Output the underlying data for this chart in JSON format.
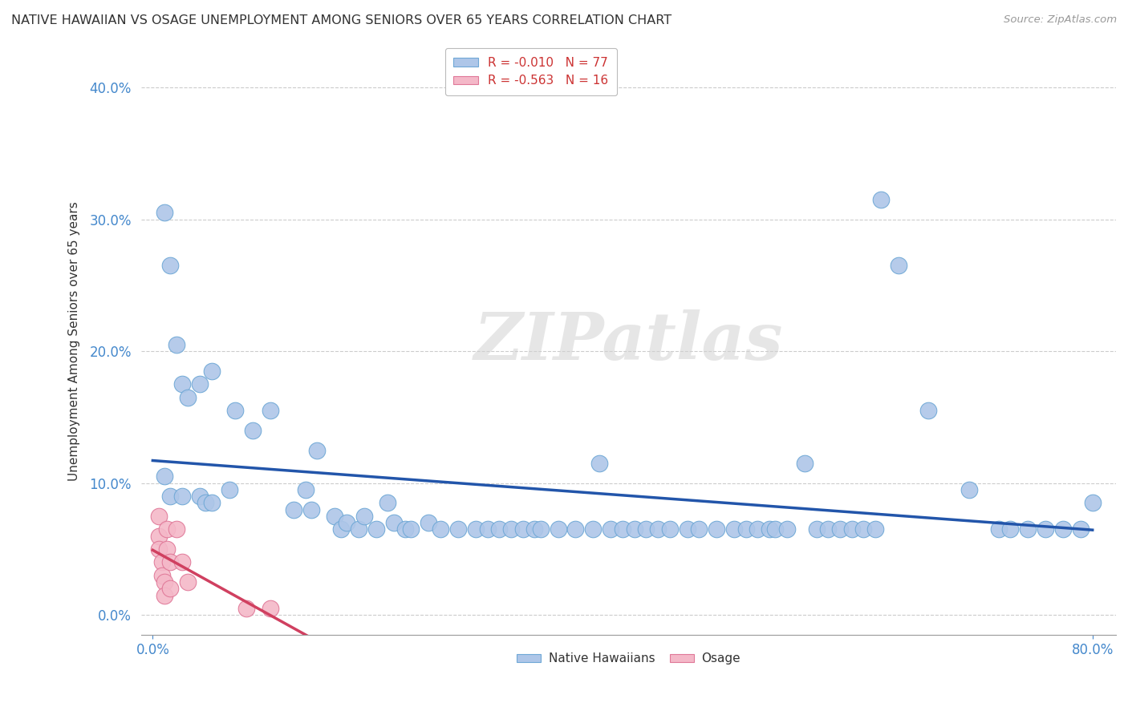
{
  "title": "NATIVE HAWAIIAN VS OSAGE UNEMPLOYMENT AMONG SENIORS OVER 65 YEARS CORRELATION CHART",
  "source": "Source: ZipAtlas.com",
  "ylabel": "Unemployment Among Seniors over 65 years",
  "watermark": "ZIPatlas",
  "nh_color": "#aec6e8",
  "nh_edge_color": "#6fa8d6",
  "osage_color": "#f4b8c8",
  "osage_edge_color": "#e07898",
  "nh_line_color": "#2255aa",
  "osage_line_color": "#d04060",
  "nh_scatter": [
    [
      0.01,
      0.305
    ],
    [
      0.015,
      0.265
    ],
    [
      0.02,
      0.205
    ],
    [
      0.025,
      0.175
    ],
    [
      0.03,
      0.165
    ],
    [
      0.04,
      0.175
    ],
    [
      0.05,
      0.185
    ],
    [
      0.01,
      0.105
    ],
    [
      0.015,
      0.09
    ],
    [
      0.025,
      0.09
    ],
    [
      0.04,
      0.09
    ],
    [
      0.045,
      0.085
    ],
    [
      0.05,
      0.085
    ],
    [
      0.065,
      0.095
    ],
    [
      0.07,
      0.155
    ],
    [
      0.085,
      0.14
    ],
    [
      0.1,
      0.155
    ],
    [
      0.12,
      0.08
    ],
    [
      0.13,
      0.095
    ],
    [
      0.135,
      0.08
    ],
    [
      0.14,
      0.125
    ],
    [
      0.155,
      0.075
    ],
    [
      0.16,
      0.065
    ],
    [
      0.165,
      0.07
    ],
    [
      0.175,
      0.065
    ],
    [
      0.18,
      0.075
    ],
    [
      0.19,
      0.065
    ],
    [
      0.2,
      0.085
    ],
    [
      0.205,
      0.07
    ],
    [
      0.215,
      0.065
    ],
    [
      0.22,
      0.065
    ],
    [
      0.235,
      0.07
    ],
    [
      0.245,
      0.065
    ],
    [
      0.26,
      0.065
    ],
    [
      0.275,
      0.065
    ],
    [
      0.285,
      0.065
    ],
    [
      0.295,
      0.065
    ],
    [
      0.305,
      0.065
    ],
    [
      0.315,
      0.065
    ],
    [
      0.325,
      0.065
    ],
    [
      0.33,
      0.065
    ],
    [
      0.345,
      0.065
    ],
    [
      0.36,
      0.065
    ],
    [
      0.375,
      0.065
    ],
    [
      0.38,
      0.115
    ],
    [
      0.39,
      0.065
    ],
    [
      0.4,
      0.065
    ],
    [
      0.41,
      0.065
    ],
    [
      0.42,
      0.065
    ],
    [
      0.43,
      0.065
    ],
    [
      0.44,
      0.065
    ],
    [
      0.455,
      0.065
    ],
    [
      0.465,
      0.065
    ],
    [
      0.48,
      0.065
    ],
    [
      0.495,
      0.065
    ],
    [
      0.505,
      0.065
    ],
    [
      0.515,
      0.065
    ],
    [
      0.525,
      0.065
    ],
    [
      0.53,
      0.065
    ],
    [
      0.54,
      0.065
    ],
    [
      0.555,
      0.115
    ],
    [
      0.565,
      0.065
    ],
    [
      0.575,
      0.065
    ],
    [
      0.585,
      0.065
    ],
    [
      0.595,
      0.065
    ],
    [
      0.605,
      0.065
    ],
    [
      0.615,
      0.065
    ],
    [
      0.62,
      0.315
    ],
    [
      0.635,
      0.265
    ],
    [
      0.66,
      0.155
    ],
    [
      0.695,
      0.095
    ],
    [
      0.72,
      0.065
    ],
    [
      0.73,
      0.065
    ],
    [
      0.745,
      0.065
    ],
    [
      0.76,
      0.065
    ],
    [
      0.775,
      0.065
    ],
    [
      0.79,
      0.065
    ],
    [
      0.8,
      0.085
    ]
  ],
  "osage_scatter": [
    [
      0.005,
      0.075
    ],
    [
      0.005,
      0.06
    ],
    [
      0.005,
      0.05
    ],
    [
      0.008,
      0.04
    ],
    [
      0.008,
      0.03
    ],
    [
      0.01,
      0.025
    ],
    [
      0.01,
      0.015
    ],
    [
      0.012,
      0.065
    ],
    [
      0.012,
      0.05
    ],
    [
      0.015,
      0.04
    ],
    [
      0.015,
      0.02
    ],
    [
      0.02,
      0.065
    ],
    [
      0.025,
      0.04
    ],
    [
      0.03,
      0.025
    ],
    [
      0.08,
      0.005
    ],
    [
      0.1,
      0.005
    ]
  ],
  "xlim": [
    -0.01,
    0.82
  ],
  "ylim": [
    -0.015,
    0.43
  ],
  "ytick_vals": [
    0.0,
    0.1,
    0.2,
    0.3,
    0.4
  ],
  "xtick_vals": [
    0.0,
    0.8
  ]
}
